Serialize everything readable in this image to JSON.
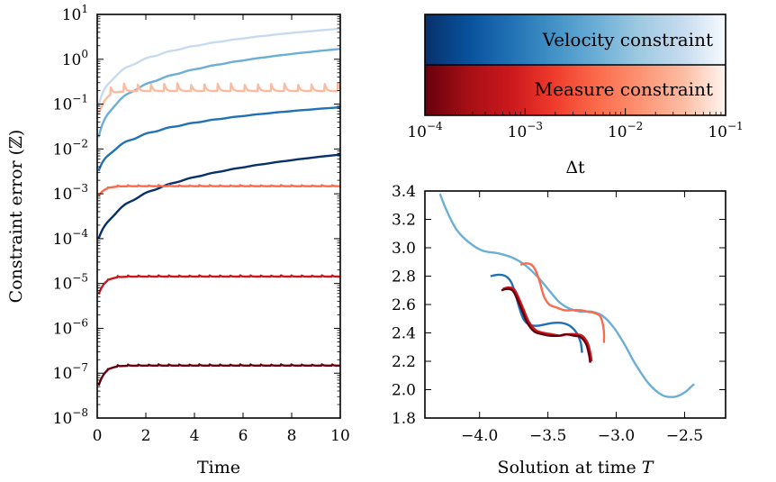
{
  "chart_data": [
    {
      "type": "line",
      "title": "",
      "xlabel": "Time",
      "ylabel": "Constraint error (ℤ)",
      "xlim": [
        0,
        10
      ],
      "ylim": [
        1e-08,
        10
      ],
      "yscale": "log",
      "xticks": [
        {
          "value": 0,
          "label": "0"
        },
        {
          "value": 2,
          "label": "2"
        },
        {
          "value": 4,
          "label": "4"
        },
        {
          "value": 6,
          "label": "6"
        },
        {
          "value": 8,
          "label": "8"
        },
        {
          "value": 10,
          "label": "10"
        }
      ],
      "yticks": [
        {
          "value": 1e-08,
          "base": "10",
          "exp": "−8"
        },
        {
          "value": 1e-07,
          "base": "10",
          "exp": "−7"
        },
        {
          "value": 1e-06,
          "base": "10",
          "exp": "−6"
        },
        {
          "value": 1e-05,
          "base": "10",
          "exp": "−5"
        },
        {
          "value": 0.0001,
          "base": "10",
          "exp": "−4"
        },
        {
          "value": 0.001,
          "base": "10",
          "exp": "−3"
        },
        {
          "value": 0.01,
          "base": "10",
          "exp": "−2"
        },
        {
          "value": 0.1,
          "base": "10",
          "exp": "−1"
        },
        {
          "value": 1,
          "base": "10",
          "exp": "0"
        },
        {
          "value": 10,
          "base": "10",
          "exp": "1"
        }
      ],
      "grid": false,
      "series": [
        {
          "constraint": "velocity",
          "dt": 0.1,
          "color": "#c6dbef",
          "kind": "grow",
          "start": 0.06,
          "end": 4.8,
          "knee": 0.12
        },
        {
          "constraint": "velocity",
          "dt": 0.05,
          "color": "#6baed6",
          "kind": "grow",
          "start": 0.012,
          "end": 1.7,
          "knee": 0.15
        },
        {
          "constraint": "velocity",
          "dt": 0.01,
          "color": "#2171b5",
          "kind": "grow",
          "start": 0.0025,
          "end": 0.085,
          "knee": 0.2
        },
        {
          "constraint": "velocity",
          "dt": 0.001,
          "color": "#08306b",
          "kind": "grow",
          "start": 8e-05,
          "end": 0.0075,
          "knee": 0.35
        },
        {
          "constraint": "measure",
          "dt": 0.05,
          "color": "#fcbba1",
          "kind": "osc",
          "start": 0.04,
          "end": 0.22,
          "amp": 0.45,
          "period": 0.55
        },
        {
          "constraint": "measure",
          "dt": 0.01,
          "color": "#fb6a4a",
          "kind": "osc",
          "start": 0.0008,
          "end": 0.0015,
          "amp": 0.06,
          "period": 0.42
        },
        {
          "constraint": "measure",
          "dt": 0.001,
          "color": "#cb181d",
          "kind": "osc",
          "start": 4.5e-06,
          "end": 1.45e-05,
          "amp": 0.07,
          "period": 0.42
        },
        {
          "constraint": "measure",
          "dt": 0.0001,
          "color": "#67000d",
          "kind": "osc",
          "start": 4e-08,
          "end": 1.5e-07,
          "amp": 0.07,
          "period": 0.42
        }
      ]
    },
    {
      "type": "colorbar",
      "xlabel": "Δt",
      "xscale": "log",
      "xlim": [
        0.0001,
        0.1
      ],
      "xticks": [
        {
          "value": 0.0001,
          "base": "10",
          "exp": "−4"
        },
        {
          "value": 0.001,
          "base": "10",
          "exp": "−3"
        },
        {
          "value": 0.01,
          "base": "10",
          "exp": "−2"
        },
        {
          "value": 0.1,
          "base": "10",
          "exp": "−1"
        }
      ],
      "bars": [
        {
          "label": "Velocity constraint",
          "colormap": "Blues",
          "stops": [
            "#08306b",
            "#08519c",
            "#2171b5",
            "#4292c6",
            "#6baed6",
            "#9ecae1",
            "#c6dbef",
            "#f7fbff"
          ]
        },
        {
          "label": "Measure constraint",
          "colormap": "Reds",
          "stops": [
            "#67000d",
            "#a50f15",
            "#cb181d",
            "#ef3b2c",
            "#fb6a4a",
            "#fc9272",
            "#fcbba1",
            "#fff5f0"
          ]
        }
      ]
    },
    {
      "type": "line",
      "title": "",
      "xlabel": "Solution at time T",
      "ylabel": "",
      "xlim": [
        -4.4,
        -2.2
      ],
      "ylim": [
        1.8,
        3.4
      ],
      "xticks": [
        {
          "value": -4.0,
          "label": "−4.0"
        },
        {
          "value": -3.5,
          "label": "−3.5"
        },
        {
          "value": -3.0,
          "label": "−3.0"
        },
        {
          "value": -2.5,
          "label": "−2.5"
        }
      ],
      "yticks": [
        {
          "value": 1.8,
          "label": "1.8"
        },
        {
          "value": 2.0,
          "label": "2.0"
        },
        {
          "value": 2.2,
          "label": "2.2"
        },
        {
          "value": 2.4,
          "label": "2.4"
        },
        {
          "value": 2.6,
          "label": "2.6"
        },
        {
          "value": 2.8,
          "label": "2.8"
        },
        {
          "value": 3.0,
          "label": "3.0"
        },
        {
          "value": 3.2,
          "label": "3.2"
        },
        {
          "value": 3.4,
          "label": "3.4"
        }
      ],
      "grid": false,
      "series": [
        {
          "color": "#6baed6",
          "x": [
            -4.29,
            -4.24,
            -4.17,
            -4.08,
            -3.98,
            -3.86,
            -3.76,
            -3.67,
            -3.58,
            -3.5,
            -3.42,
            -3.34,
            -3.26,
            -3.18,
            -3.1,
            -3.02,
            -2.94,
            -2.86,
            -2.76,
            -2.66,
            -2.57,
            -2.5,
            -2.43
          ],
          "y": [
            3.38,
            3.26,
            3.13,
            3.04,
            2.98,
            2.96,
            2.93,
            2.88,
            2.8,
            2.71,
            2.62,
            2.57,
            2.55,
            2.55,
            2.52,
            2.44,
            2.32,
            2.18,
            2.04,
            1.96,
            1.95,
            1.98,
            2.04
          ]
        },
        {
          "color": "#fb6a4a",
          "x": [
            -3.7,
            -3.66,
            -3.62,
            -3.59,
            -3.56,
            -3.53,
            -3.49,
            -3.44,
            -3.38,
            -3.32,
            -3.26,
            -3.21,
            -3.16,
            -3.12,
            -3.1,
            -3.09,
            -3.09
          ],
          "y": [
            2.88,
            2.89,
            2.88,
            2.84,
            2.76,
            2.66,
            2.6,
            2.58,
            2.56,
            2.56,
            2.56,
            2.55,
            2.54,
            2.52,
            2.47,
            2.4,
            2.33
          ]
        },
        {
          "color": "#2171b5",
          "x": [
            -3.92,
            -3.86,
            -3.81,
            -3.77,
            -3.74,
            -3.71,
            -3.68,
            -3.64,
            -3.58,
            -3.52,
            -3.46,
            -3.4,
            -3.34,
            -3.29,
            -3.26,
            -3.25
          ],
          "y": [
            2.8,
            2.81,
            2.8,
            2.76,
            2.68,
            2.58,
            2.5,
            2.46,
            2.45,
            2.46,
            2.47,
            2.47,
            2.45,
            2.4,
            2.33,
            2.26
          ]
        },
        {
          "color": "#cb181d",
          "x": [
            -3.83,
            -3.79,
            -3.75,
            -3.72,
            -3.68,
            -3.64,
            -3.59,
            -3.53,
            -3.47,
            -3.41,
            -3.36,
            -3.3,
            -3.25,
            -3.21,
            -3.19,
            -3.18
          ],
          "y": [
            2.71,
            2.72,
            2.71,
            2.66,
            2.57,
            2.48,
            2.42,
            2.4,
            2.39,
            2.38,
            2.39,
            2.39,
            2.38,
            2.33,
            2.26,
            2.2
          ]
        },
        {
          "color": "#67000d",
          "x": [
            -3.84,
            -3.8,
            -3.76,
            -3.73,
            -3.69,
            -3.65,
            -3.6,
            -3.54,
            -3.48,
            -3.42,
            -3.37,
            -3.31,
            -3.26,
            -3.22,
            -3.2,
            -3.19
          ],
          "y": [
            2.7,
            2.71,
            2.7,
            2.65,
            2.56,
            2.47,
            2.41,
            2.39,
            2.38,
            2.38,
            2.39,
            2.38,
            2.37,
            2.32,
            2.25,
            2.19
          ]
        }
      ]
    }
  ]
}
